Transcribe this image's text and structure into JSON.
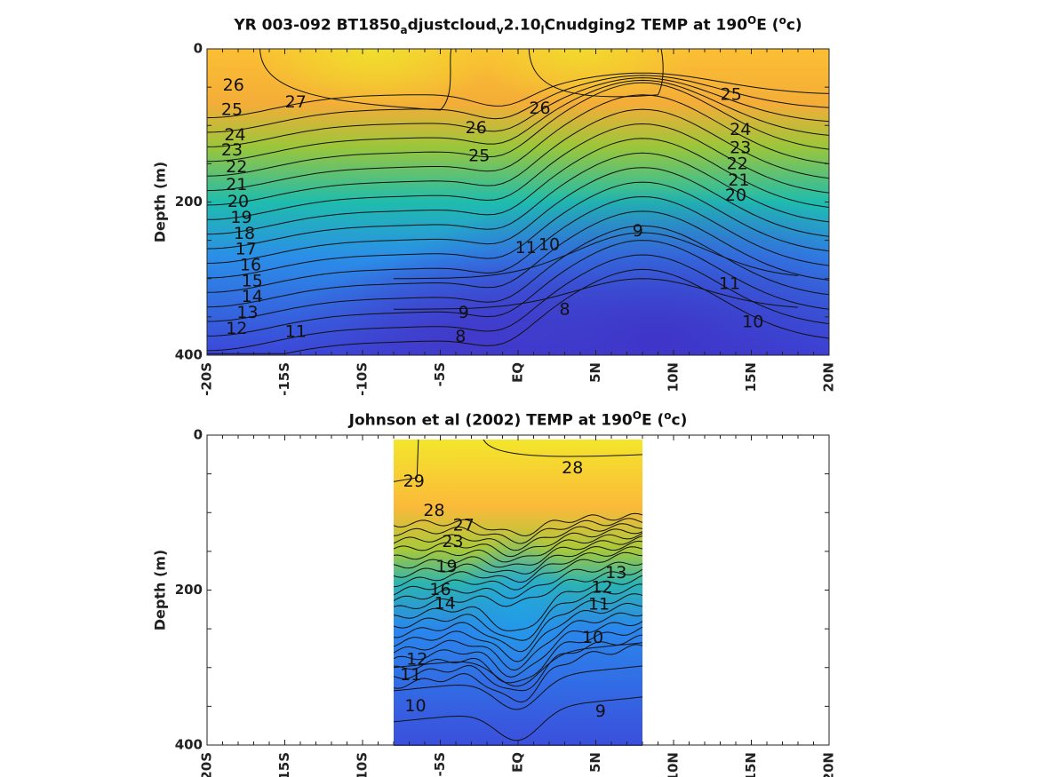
{
  "colors": {
    "deep": "#3b3bd6",
    "mid": "#2aa6e0",
    "teal": "#20b8a8",
    "green": "#8fc83a",
    "orange": "#fdb42f",
    "yellow": "#f2e82a"
  },
  "chart_data": [
    {
      "type": "heatmap",
      "title": {
        "pre": "YR 003-092 BT1850",
        "sub1": "a",
        "mid1": "djustcloud",
        "sub2": "v",
        "mid2": "2.10",
        "sub3": "l",
        "post": "Cnudging2 TEMP at 190",
        "sup1": "O",
        "after": "E (",
        "sup2": "o",
        "end": "c)"
      },
      "ylabel": "Depth (m)",
      "xlim": [
        -20,
        20
      ],
      "ylim": [
        0,
        400
      ],
      "x_ticks": [
        -20,
        -15,
        -10,
        -5,
        0,
        5,
        10,
        15,
        20
      ],
      "x_tick_labels": [
        "-20S",
        "-15S",
        "-10S",
        "-5S",
        "EQ",
        "5N",
        "10N",
        "15N",
        "20N"
      ],
      "y_ticks": [
        0,
        200,
        400
      ],
      "y_tick_labels": [
        "0",
        "200",
        "400"
      ],
      "data_range": [
        -20,
        20
      ],
      "contour_labels": [
        {
          "v": "26",
          "x": -18.3,
          "y": 48
        },
        {
          "v": "25",
          "x": -18.4,
          "y": 80
        },
        {
          "v": "24",
          "x": -18.2,
          "y": 113
        },
        {
          "v": "23",
          "x": -18.4,
          "y": 133
        },
        {
          "v": "22",
          "x": -18.1,
          "y": 155
        },
        {
          "v": "21",
          "x": -18.1,
          "y": 178
        },
        {
          "v": "20",
          "x": -18.0,
          "y": 200
        },
        {
          "v": "19",
          "x": -17.8,
          "y": 221
        },
        {
          "v": "18",
          "x": -17.6,
          "y": 242
        },
        {
          "v": "17",
          "x": -17.5,
          "y": 262
        },
        {
          "v": "16",
          "x": -17.2,
          "y": 283
        },
        {
          "v": "15",
          "x": -17.1,
          "y": 304
        },
        {
          "v": "14",
          "x": -17.1,
          "y": 324
        },
        {
          "v": "13",
          "x": -17.4,
          "y": 345
        },
        {
          "v": "12",
          "x": -18.1,
          "y": 366
        },
        {
          "v": "11",
          "x": -14.3,
          "y": 370
        },
        {
          "v": "27",
          "x": -14.3,
          "y": 70
        },
        {
          "v": "26",
          "x": -2.7,
          "y": 104
        },
        {
          "v": "26",
          "x": 1.4,
          "y": 78
        },
        {
          "v": "25",
          "x": 13.7,
          "y": 60
        },
        {
          "v": "24",
          "x": 14.3,
          "y": 106
        },
        {
          "v": "23",
          "x": 14.3,
          "y": 130
        },
        {
          "v": "22",
          "x": 14.1,
          "y": 151
        },
        {
          "v": "21",
          "x": 14.2,
          "y": 172
        },
        {
          "v": "20",
          "x": 14.0,
          "y": 192
        },
        {
          "v": "25",
          "x": -2.5,
          "y": 140
        },
        {
          "v": "11",
          "x": 0.5,
          "y": 260
        },
        {
          "v": "10",
          "x": 2.0,
          "y": 256
        },
        {
          "v": "9",
          "x": 7.7,
          "y": 238
        },
        {
          "v": "9",
          "x": -3.5,
          "y": 345
        },
        {
          "v": "8",
          "x": 3.0,
          "y": 341
        },
        {
          "v": "8",
          "x": -3.7,
          "y": 376
        },
        {
          "v": "11",
          "x": 13.6,
          "y": 307
        },
        {
          "v": "10",
          "x": 15.1,
          "y": 357
        }
      ]
    },
    {
      "type": "heatmap",
      "title": {
        "pre": "Johnson et al (2002) TEMP at 190",
        "sup1": "O",
        "after": "E (",
        "sup2": "o",
        "end": "c)"
      },
      "ylabel": "Depth (m)",
      "xlim": [
        -20,
        20
      ],
      "ylim": [
        0,
        400
      ],
      "x_ticks": [
        -20,
        -15,
        -10,
        -5,
        0,
        5,
        10,
        15,
        20
      ],
      "x_tick_labels": [
        "-20S",
        "-15S",
        "-10S",
        "-5S",
        "EQ",
        "5N",
        "10N",
        "15N",
        "20N"
      ],
      "y_ticks": [
        0,
        200,
        400
      ],
      "y_tick_labels": [
        "0",
        "200",
        "400"
      ],
      "data_range": [
        -8,
        8
      ],
      "contour_labels": [
        {
          "v": "29",
          "x": -6.7,
          "y": 60
        },
        {
          "v": "28",
          "x": -5.4,
          "y": 98
        },
        {
          "v": "28",
          "x": 3.5,
          "y": 43
        },
        {
          "v": "27",
          "x": -3.5,
          "y": 117
        },
        {
          "v": "13",
          "x": 6.3,
          "y": 178
        },
        {
          "v": "12",
          "x": 5.4,
          "y": 197
        },
        {
          "v": "11",
          "x": 5.2,
          "y": 219
        },
        {
          "v": "10",
          "x": 4.8,
          "y": 262
        },
        {
          "v": "12",
          "x": -6.5,
          "y": 290
        },
        {
          "v": "11",
          "x": -6.9,
          "y": 310
        },
        {
          "v": "10",
          "x": -6.6,
          "y": 350
        },
        {
          "v": "9",
          "x": 5.3,
          "y": 357
        },
        {
          "v": "14",
          "x": -4.7,
          "y": 218
        },
        {
          "v": "16",
          "x": -5.0,
          "y": 200
        },
        {
          "v": "19",
          "x": -4.6,
          "y": 170
        },
        {
          "v": "23",
          "x": -4.2,
          "y": 138
        }
      ]
    }
  ]
}
